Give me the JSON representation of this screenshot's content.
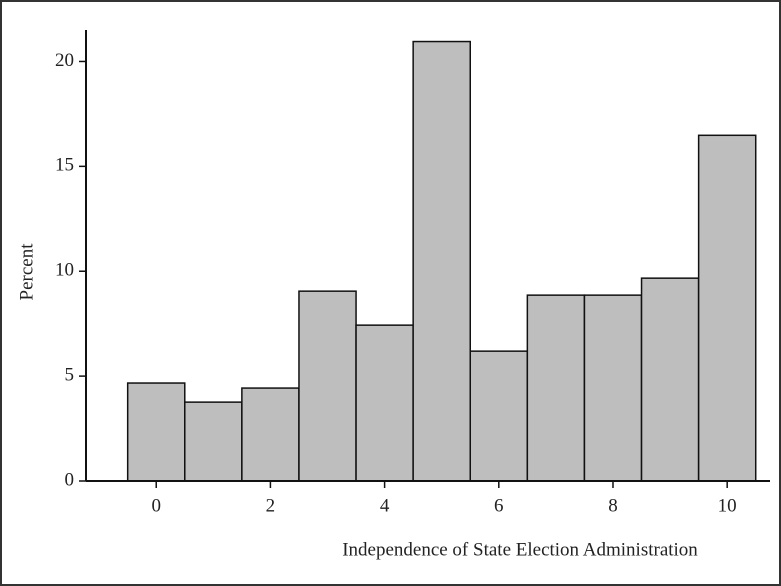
{
  "chart_data": {
    "type": "histogram",
    "xlabel": "Independence of State Election Administration",
    "ylabel": "Percent",
    "bins": [
      -0.5,
      0.5,
      1.5,
      2.5,
      3.5,
      4.5,
      5.5,
      6.5,
      7.5,
      8.5,
      9.5,
      10.5
    ],
    "values": [
      4.67,
      3.76,
      4.43,
      9.05,
      7.43,
      20.95,
      6.19,
      8.86,
      8.86,
      9.67,
      16.48
    ],
    "color": "#bebebe",
    "xlim": [
      -1.23,
      10.75
    ],
    "xticks": [
      0,
      2,
      4,
      6,
      8,
      10
    ],
    "ylim": [
      0,
      21.5
    ],
    "yticks": [
      0,
      5,
      10,
      15,
      20
    ]
  }
}
